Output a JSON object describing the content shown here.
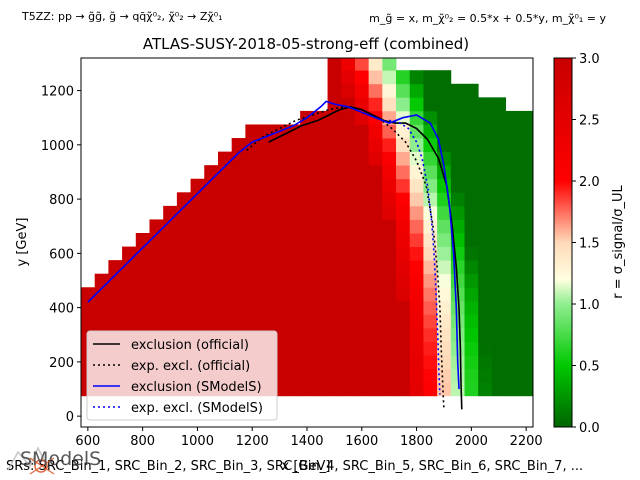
{
  "chart_data": {
    "type": "heatmap",
    "title": "ATLAS-SUSY-2018-05-strong-eff (combined)",
    "top_left_label": "T5ZZ: pp → g̃g̃, g̃ → qq̄χ̃⁰₂, χ̃⁰₂ → Zχ̃⁰₁",
    "top_right_label": "m_g̃ = x, m_χ̃⁰₂ = 0.5*x + 0.5*y, m_χ̃⁰₁ = y",
    "xlabel": "x [GeV]",
    "ylabel": "y [GeV]",
    "colorbar_label": "r = σ_signal/σ_UL",
    "xlim": [
      575,
      2225
    ],
    "ylim": [
      -40,
      1320
    ],
    "xticks": [
      600,
      800,
      1000,
      1200,
      1400,
      1600,
      1800,
      2000,
      2200
    ],
    "yticks": [
      0,
      200,
      400,
      600,
      800,
      1000,
      1200
    ],
    "colorbar_range": [
      0,
      3
    ],
    "colorbar_ticks": [
      0.0,
      0.5,
      1.0,
      1.5,
      2.0,
      2.5,
      3.0
    ],
    "colormap": [
      "#006400",
      "#00c800",
      "#90ee90",
      "#ffffe0",
      "#ffdab9",
      "#ff0000",
      "#c80000"
    ],
    "grid_cell": {
      "dx": 50,
      "dy": 50
    },
    "legend": {
      "placement": "lower-left",
      "entries": [
        {
          "label": "exclusion (official)",
          "color": "#000000",
          "style": "solid"
        },
        {
          "label": "exp. excl. (official)",
          "color": "#000000",
          "style": "dotted"
        },
        {
          "label": "exclusion (SModelS)",
          "color": "#0000ff",
          "style": "solid"
        },
        {
          "label": "exp. excl. (SModelS)",
          "color": "#0000ff",
          "style": "dotted"
        }
      ]
    },
    "series": [
      {
        "name": "exclusion (official)",
        "x": [
          1260,
          1320,
          1380,
          1440,
          1480,
          1520,
          1560,
          1600,
          1640,
          1680,
          1720,
          1760,
          1800,
          1840,
          1880,
          1910,
          1930,
          1945,
          1955,
          1960,
          1962,
          1965
        ],
        "y": [
          1010,
          1040,
          1070,
          1090,
          1110,
          1130,
          1140,
          1130,
          1110,
          1090,
          1080,
          1080,
          1060,
          1020,
          950,
          850,
          700,
          550,
          400,
          250,
          120,
          25
        ]
      },
      {
        "name": "exp. excl. (official)",
        "x": [
          1180,
          1240,
          1300,
          1360,
          1420,
          1480,
          1540,
          1600,
          1660,
          1710,
          1760,
          1800,
          1835,
          1860,
          1875,
          1885,
          1890,
          1895,
          1898,
          1900
        ],
        "y": [
          980,
          1030,
          1060,
          1090,
          1110,
          1130,
          1140,
          1130,
          1100,
          1060,
          1010,
          940,
          850,
          700,
          550,
          400,
          250,
          130,
          60,
          25
        ]
      },
      {
        "name": "exclusion (SModelS)",
        "x": [
          600,
          650,
          700,
          750,
          800,
          850,
          900,
          950,
          1000,
          1050,
          1100,
          1150,
          1200,
          1250,
          1300,
          1350,
          1400,
          1450,
          1470,
          1500,
          1550,
          1600,
          1650,
          1700,
          1750,
          1800,
          1850,
          1880,
          1900,
          1920,
          1935,
          1945,
          1950,
          1955
        ],
        "y": [
          420,
          470,
          520,
          570,
          620,
          670,
          720,
          770,
          820,
          870,
          920,
          970,
          1010,
          1030,
          1050,
          1070,
          1100,
          1140,
          1160,
          1150,
          1140,
          1120,
          1100,
          1080,
          1100,
          1110,
          1080,
          1020,
          920,
          780,
          600,
          400,
          200,
          100
        ]
      },
      {
        "name": "exp. excl. (SModelS)",
        "x": [
          1700,
          1740,
          1770,
          1800,
          1820,
          1840,
          1855,
          1865,
          1872,
          1878,
          1882,
          1885
        ],
        "y": [
          1090,
          1080,
          1060,
          1010,
          950,
          850,
          720,
          580,
          430,
          280,
          150,
          80
        ]
      }
    ]
  },
  "footer_text": "SRs: SRC_Bin_1, SRC_Bin_2, SRC_Bin_3, SRC_Bin_4, SRC_Bin_5, SRC_Bin_6, SRC_Bin_7, ...",
  "logo_text": "SModelS"
}
